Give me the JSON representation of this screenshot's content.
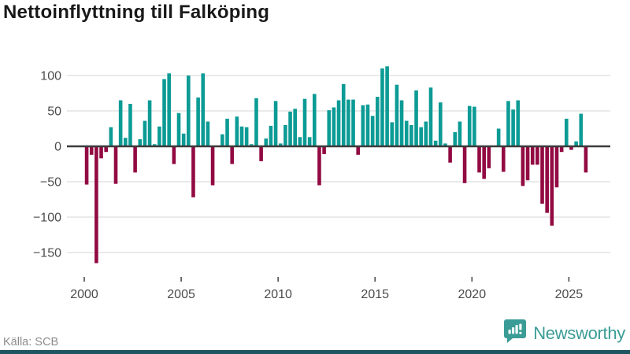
{
  "header": {
    "title": "Nettoinflyttning till Falköping"
  },
  "footer": {
    "source_label": "Källa: SCB",
    "brand": "Newsworthy"
  },
  "colors": {
    "positive": "#0c9b95",
    "negative": "#920a42",
    "grid": "#e3e3e3",
    "zero_axis": "#3b3b3b",
    "axis_text": "#4c4c4c",
    "title_text": "#191919",
    "source_text": "#8c8c8c",
    "brand_teal": "#3b9c96",
    "bottom_strip": "#1d5560"
  },
  "chart_data": {
    "type": "bar",
    "title": "Nettoinflyttning till Falköping",
    "frequency": "quarterly",
    "start_year": 2000,
    "end_year": 2025,
    "x_tick_labels": [
      "2000",
      "2005",
      "2010",
      "2015",
      "2020",
      "2025"
    ],
    "y_ticks": [
      100,
      50,
      0,
      -50,
      -100,
      -150
    ],
    "y_tick_labels": [
      "100",
      "50",
      "0",
      "−50",
      "−100",
      "−150"
    ],
    "ylim": [
      -178,
      129
    ],
    "grid": true,
    "legend": "none",
    "values": [
      -54,
      -12,
      -165,
      -17,
      -8,
      27,
      -53,
      65,
      12,
      60,
      -37,
      10,
      36,
      65,
      3,
      28,
      95,
      103,
      -25,
      47,
      18,
      100,
      -72,
      69,
      103,
      35,
      -55,
      null,
      17,
      39,
      -25,
      42,
      28,
      27,
      3,
      68,
      -21,
      11,
      29,
      64,
      4,
      30,
      49,
      53,
      13,
      67,
      13,
      74,
      -55,
      -11,
      51,
      55,
      65,
      88,
      66,
      66,
      -12,
      58,
      59,
      43,
      70,
      110,
      113,
      34,
      87,
      65,
      36,
      30,
      79,
      27,
      35,
      83,
      8,
      62,
      4,
      -23,
      20,
      35,
      -52,
      57,
      56,
      -37,
      -46,
      -31,
      null,
      25,
      -36,
      64,
      52,
      65,
      -56,
      -48,
      -26,
      -26,
      -81,
      -94,
      -112,
      -58,
      -8,
      39,
      -5,
      7,
      46,
      -37
    ]
  }
}
